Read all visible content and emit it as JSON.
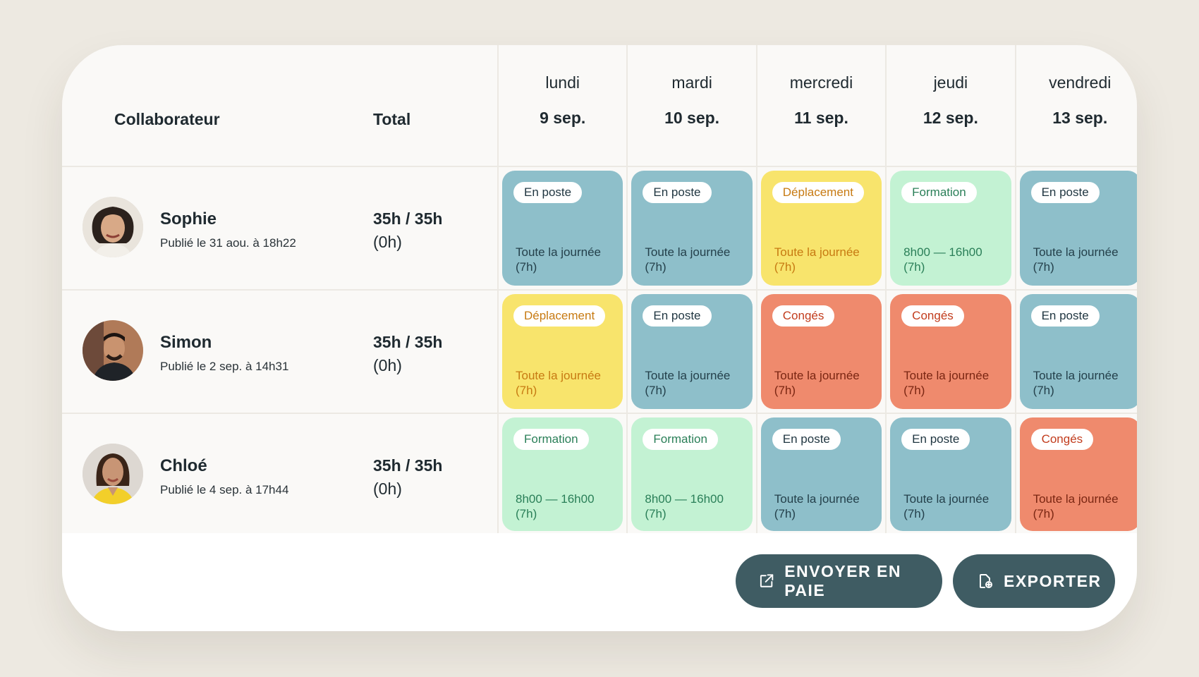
{
  "header": {
    "collaborateur_label": "Collaborateur",
    "total_label": "Total",
    "days": [
      {
        "name": "lundi",
        "date": "9 sep."
      },
      {
        "name": "mardi",
        "date": "10 sep."
      },
      {
        "name": "mercredi",
        "date": "11 sep."
      },
      {
        "name": "jeudi",
        "date": "12 sep."
      },
      {
        "name": "vendredi",
        "date": "13 sep."
      }
    ]
  },
  "people": [
    {
      "name": "Sophie",
      "published": "Publié le 31 aou. à 18h22",
      "total": "35h / 35h",
      "delta": "(0h)",
      "slots": [
        {
          "type": "poste",
          "label": "En poste",
          "line1": "Toute la journée",
          "line2": "(7h)"
        },
        {
          "type": "poste",
          "label": "En poste",
          "line1": "Toute la journée",
          "line2": "(7h)"
        },
        {
          "type": "dep",
          "label": "Déplacement",
          "line1": "Toute la journée",
          "line2": "(7h)"
        },
        {
          "type": "form",
          "label": "Formation",
          "line1": "8h00 — 16h00",
          "line2": "(7h)"
        },
        {
          "type": "poste",
          "label": "En poste",
          "line1": "Toute la journée",
          "line2": "(7h)"
        }
      ]
    },
    {
      "name": "Simon",
      "published": "Publié le 2 sep. à 14h31",
      "total": "35h / 35h",
      "delta": "(0h)",
      "slots": [
        {
          "type": "dep",
          "label": "Déplacement",
          "line1": "Toute la journée",
          "line2": "(7h)"
        },
        {
          "type": "poste",
          "label": "En poste",
          "line1": "Toute la journée",
          "line2": "(7h)"
        },
        {
          "type": "conge",
          "label": "Congés",
          "line1": "Toute la journée",
          "line2": "(7h)"
        },
        {
          "type": "conge",
          "label": "Congés",
          "line1": "Toute la journée",
          "line2": "(7h)"
        },
        {
          "type": "poste",
          "label": "En poste",
          "line1": "Toute la journée",
          "line2": "(7h)"
        }
      ]
    },
    {
      "name": "Chloé",
      "published": "Publié le 4 sep. à 17h44",
      "total": "35h / 35h",
      "delta": "(0h)",
      "slots": [
        {
          "type": "form",
          "label": "Formation",
          "line1": "8h00 — 16h00",
          "line2": "(7h)"
        },
        {
          "type": "form",
          "label": "Formation",
          "line1": "8h00 — 16h00",
          "line2": "(7h)"
        },
        {
          "type": "poste",
          "label": "En poste",
          "line1": "Toute la journée",
          "line2": "(7h)"
        },
        {
          "type": "poste",
          "label": "En poste",
          "line1": "Toute la journée",
          "line2": "(7h)"
        },
        {
          "type": "conge",
          "label": "Congés",
          "line1": "Toute la journée",
          "line2": "(7h)"
        }
      ]
    }
  ],
  "actions": {
    "send_payroll": "ENVOYER EN PAIE",
    "export": "EXPORTER"
  }
}
